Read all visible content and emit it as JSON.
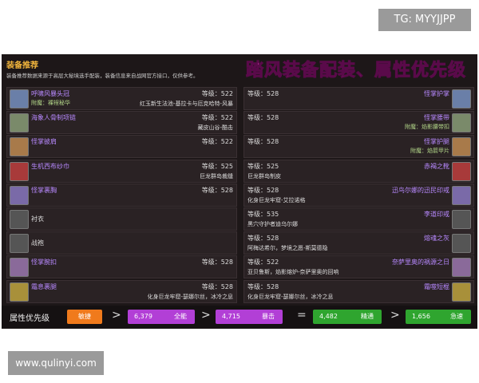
{
  "watermark_top": "TG: MYYJJPP",
  "watermark_bottom": "www.qulinyi.com",
  "header": {
    "title": "装备推荐",
    "subtitle": "装备推荐数据来源于高层大秘境选手配装，装备信息来自战网官方接口，仅供参考。",
    "banner": "踏风装备配装、属性优先级"
  },
  "left_items": [
    {
      "name": "呼啸风暴头冠",
      "enchant": "附魔：裸裎秘华",
      "level": "等级：522",
      "source": "红玉新生法池-基拉卡与厄克哈特-风暴"
    },
    {
      "name": "海象人骨制项链",
      "level": "等级：522",
      "source": "藏皮山谷-酷击"
    },
    {
      "name": "怪掌披肩",
      "level": "等级：522"
    },
    {
      "name": "生机西布纱巾",
      "level": "等级：525",
      "source": "巨龙群岛裁缝"
    },
    {
      "name": "怪掌裹胸",
      "level": "等级：528"
    },
    {
      "name": "衬衣"
    },
    {
      "name": "战袍"
    },
    {
      "name": "怪掌腕扣",
      "level": "等级：528"
    },
    {
      "name": "霜息裹腿",
      "level": "等级：528",
      "source": "化身巨龙牢窟-瑟娜尔丝，冰冷之息"
    }
  ],
  "right_items": [
    {
      "name": "怪掌护掌",
      "level": "等级：528"
    },
    {
      "name": "怪掌腰带",
      "enchant": "附魔：焰影腰带扣",
      "level": "等级：528"
    },
    {
      "name": "怪掌护腿",
      "enchant": "附魔：焰箭甲片",
      "level": "等级：528"
    },
    {
      "name": "赤褐之靴",
      "level": "等级：525",
      "source": "巨龙群岛制皮"
    },
    {
      "name": "迅鸟尔娜的迅民印戒",
      "level": "等级：528",
      "source": "化身巨龙牢窟-艾拉诺格"
    },
    {
      "name": "李道印戒",
      "level": "等级：535",
      "source": "黑穴守护者迪乌尔娜"
    },
    {
      "name": "熔魂之灰",
      "level": "等级：528",
      "source": "阿梅达希尔，梦境之愿-斯莫德隐"
    },
    {
      "name": "奈萨里奥的祸源之日",
      "level": "等级：522",
      "source": "亚贝鲁斯，焰影熔炉-奈萨里奥的回响"
    },
    {
      "name": "霜噬短棍",
      "level": "等级：528",
      "source": "化身巨龙牢窟-瑟娜尔丝，冰冷之息"
    }
  ],
  "priority": {
    "label": "属性优先级",
    "items": [
      {
        "name": "敏捷",
        "color": "#f07a1c"
      },
      {
        "value": "6,379",
        "name": "全能",
        "color": "#b23fd6"
      },
      {
        "value": "4,715",
        "name": "暴击",
        "color": "#b23fd6"
      },
      {
        "value": "4,482",
        "name": "精通",
        "color": "#2fa52f"
      },
      {
        "value": "1,656",
        "name": "急速",
        "color": "#2fa52f"
      }
    ],
    "separators": [
      ">",
      ">",
      "=",
      ">"
    ]
  }
}
